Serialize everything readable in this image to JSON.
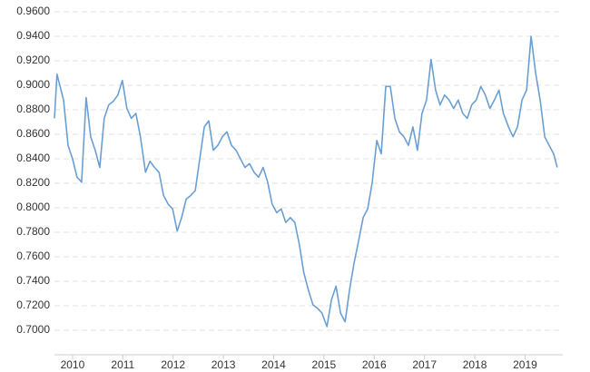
{
  "chart_data": {
    "type": "line",
    "x": [
      2009.64,
      2009.69,
      2009.82,
      2009.91,
      2010.0,
      2010.09,
      2010.18,
      2010.27,
      2010.36,
      2010.45,
      2010.54,
      2010.63,
      2010.72,
      2010.81,
      2010.9,
      2010.99,
      2011.08,
      2011.17,
      2011.26,
      2011.35,
      2011.45,
      2011.54,
      2011.63,
      2011.72,
      2011.81,
      2011.9,
      2011.99,
      2012.08,
      2012.17,
      2012.26,
      2012.35,
      2012.44,
      2012.53,
      2012.62,
      2012.71,
      2012.8,
      2012.89,
      2012.98,
      2013.07,
      2013.16,
      2013.25,
      2013.34,
      2013.43,
      2013.52,
      2013.61,
      2013.7,
      2013.79,
      2013.88,
      2013.97,
      2014.06,
      2014.15,
      2014.24,
      2014.33,
      2014.42,
      2014.51,
      2014.6,
      2014.69,
      2014.78,
      2014.87,
      2014.96,
      2015.06,
      2015.15,
      2015.24,
      2015.33,
      2015.42,
      2015.51,
      2015.6,
      2015.69,
      2015.78,
      2015.87,
      2015.96,
      2016.05,
      2016.14,
      2016.23,
      2016.32,
      2016.41,
      2016.5,
      2016.59,
      2016.68,
      2016.77,
      2016.86,
      2016.95,
      2017.04,
      2017.13,
      2017.22,
      2017.31,
      2017.4,
      2017.49,
      2017.58,
      2017.67,
      2017.76,
      2017.85,
      2017.94,
      2018.03,
      2018.12,
      2018.21,
      2018.3,
      2018.39,
      2018.48,
      2018.57,
      2018.67,
      2018.76,
      2018.85,
      2018.94,
      2019.03,
      2019.12,
      2019.21,
      2019.3,
      2019.39,
      2019.48,
      2019.57,
      2019.64
    ],
    "series": [
      {
        "color": "#6a9fd4",
        "values": [
          0.873,
          0.909,
          0.888,
          0.851,
          0.84,
          0.825,
          0.821,
          0.89,
          0.858,
          0.847,
          0.833,
          0.873,
          0.884,
          0.887,
          0.892,
          0.904,
          0.881,
          0.873,
          0.877,
          0.858,
          0.829,
          0.838,
          0.833,
          0.829,
          0.81,
          0.803,
          0.799,
          0.781,
          0.792,
          0.807,
          0.81,
          0.814,
          0.84,
          0.866,
          0.871,
          0.847,
          0.851,
          0.858,
          0.862,
          0.851,
          0.847,
          0.84,
          0.833,
          0.836,
          0.829,
          0.825,
          0.833,
          0.821,
          0.803,
          0.796,
          0.799,
          0.788,
          0.792,
          0.788,
          0.77,
          0.747,
          0.733,
          0.721,
          0.718,
          0.714,
          0.703,
          0.725,
          0.736,
          0.714,
          0.707,
          0.733,
          0.755,
          0.773,
          0.792,
          0.799,
          0.821,
          0.855,
          0.844,
          0.899,
          0.899,
          0.873,
          0.862,
          0.858,
          0.851,
          0.866,
          0.847,
          0.877,
          0.888,
          0.921,
          0.896,
          0.884,
          0.892,
          0.888,
          0.881,
          0.888,
          0.877,
          0.873,
          0.884,
          0.888,
          0.899,
          0.892,
          0.881,
          0.888,
          0.896,
          0.877,
          0.866,
          0.858,
          0.866,
          0.888,
          0.896,
          0.94,
          0.91,
          0.888,
          0.858,
          0.851,
          0.844,
          0.833
        ]
      }
    ],
    "xlim": [
      2009.64,
      2019.75
    ],
    "xticks": [
      2010,
      2011,
      2012,
      2013,
      2014,
      2015,
      2016,
      2017,
      2018,
      2019
    ],
    "ylim": [
      0.68,
      0.96
    ],
    "yticks": [
      {
        "value": 0.7,
        "label": "0.7000"
      },
      {
        "value": 0.72,
        "label": "0.7200"
      },
      {
        "value": 0.74,
        "label": "0.7400"
      },
      {
        "value": 0.76,
        "label": "0.7600"
      },
      {
        "value": 0.78,
        "label": "0.7800"
      },
      {
        "value": 0.8,
        "label": "0.8000"
      },
      {
        "value": 0.82,
        "label": "0.8200"
      },
      {
        "value": 0.84,
        "label": "0.8400"
      },
      {
        "value": 0.86,
        "label": "0.8600"
      },
      {
        "value": 0.88,
        "label": "0.8800"
      },
      {
        "value": 0.9,
        "label": "0.9000"
      },
      {
        "value": 0.92,
        "label": "0.9200"
      },
      {
        "value": 0.94,
        "label": "0.9400"
      },
      {
        "value": 0.96,
        "label": "0.9600"
      }
    ],
    "grid": true
  }
}
